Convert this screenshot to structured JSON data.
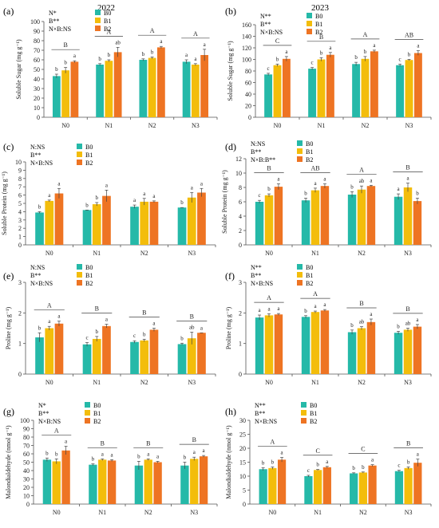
{
  "colors": {
    "B0": "#25b9a8",
    "B1": "#f3bd0b",
    "B2": "#ee7423",
    "axis": "#555555",
    "text": "#222222"
  },
  "chart_data": [
    {
      "panel": "(a)",
      "year": "2022",
      "type": "bar",
      "ylabel": "Soluble Sugar (mg g⁻¹)",
      "ylim": [
        0,
        100
      ],
      "yticks": [
        "0",
        "10",
        "20",
        "30",
        "40",
        "50",
        "60",
        "70",
        "80",
        "90",
        "100"
      ],
      "categories": [
        "N0",
        "N1",
        "N2",
        "N3"
      ],
      "effects": [
        "N*",
        "B**",
        "N×B:NS"
      ],
      "series": [
        {
          "name": "B0",
          "values": [
            43,
            55,
            60,
            58
          ],
          "err": [
            2,
            1,
            1,
            2
          ],
          "letters": [
            "b",
            "b",
            "b",
            "a"
          ]
        },
        {
          "name": "B1",
          "values": [
            49,
            59,
            62,
            55
          ],
          "err": [
            3,
            1,
            1,
            1
          ],
          "letters": [
            "b",
            "b",
            "b",
            "a"
          ]
        },
        {
          "name": "B2",
          "values": [
            58,
            68,
            73,
            65
          ],
          "err": [
            1,
            5,
            1,
            6
          ],
          "letters": [
            "a",
            "ab",
            "a",
            "a"
          ]
        }
      ],
      "group_letters": [
        "B",
        "A",
        "A",
        "A"
      ]
    },
    {
      "panel": "(b)",
      "year": "2023",
      "type": "bar",
      "ylabel": "Soluble Sugar (mg g⁻¹)",
      "ylim": [
        0,
        160
      ],
      "yticks": [
        "0",
        "20",
        "40",
        "60",
        "80",
        "100",
        "120",
        "140",
        "160"
      ],
      "categories": [
        "N0",
        "N1",
        "N2",
        "N3"
      ],
      "effects": [
        "N**",
        "B**",
        "N×B:NS"
      ],
      "series": [
        {
          "name": "B0",
          "values": [
            74,
            84,
            92,
            90
          ],
          "err": [
            2,
            2,
            3,
            2
          ],
          "letters": [
            "c",
            "c",
            "b",
            "c"
          ]
        },
        {
          "name": "B1",
          "values": [
            90,
            100,
            101,
            99
          ],
          "err": [
            2,
            3,
            4,
            1
          ],
          "letters": [
            "b",
            "b",
            "b",
            "b"
          ]
        },
        {
          "name": "B2",
          "values": [
            101,
            108,
            114,
            111
          ],
          "err": [
            4,
            4,
            2,
            4
          ],
          "letters": [
            "a",
            "a",
            "a",
            "a"
          ]
        }
      ],
      "group_letters": [
        "C",
        "B",
        "A",
        "AB"
      ]
    },
    {
      "panel": "(c)",
      "type": "bar",
      "ylabel": "Soluble Protein (mg g⁻¹)",
      "ylim": [
        0,
        10
      ],
      "yticks": [
        "0",
        "1",
        "2",
        "3",
        "4",
        "5",
        "6",
        "7",
        "8",
        "9",
        "10"
      ],
      "categories": [
        "N0",
        "N1",
        "N2",
        "N3"
      ],
      "effects": [
        "N:NS",
        "B**",
        "N×B:NS"
      ],
      "series": [
        {
          "name": "B0",
          "values": [
            3.9,
            4.2,
            4.6,
            4.5
          ],
          "err": [
            0.1,
            0.0,
            0.2,
            0.0
          ],
          "letters": [
            "b",
            "b",
            "a",
            "b"
          ]
        },
        {
          "name": "B1",
          "values": [
            5.3,
            4.9,
            5.2,
            5.7
          ],
          "err": [
            0.1,
            0.2,
            0.4,
            0.6
          ],
          "letters": [
            "a",
            "b",
            "a",
            "a"
          ]
        },
        {
          "name": "B2",
          "values": [
            6.2,
            5.9,
            5.2,
            6.3
          ],
          "err": [
            0.6,
            0.7,
            0.1,
            0.5
          ],
          "letters": [
            "a",
            "a",
            "a",
            "a"
          ]
        }
      ],
      "group_letters": [
        "",
        "",
        "",
        ""
      ]
    },
    {
      "panel": "(d)",
      "type": "bar",
      "ylabel": "Soluble Protein (mg g⁻¹)",
      "ylim": [
        0,
        12
      ],
      "yticks": [
        "0",
        "2",
        "4",
        "6",
        "8",
        "10",
        "12"
      ],
      "categories": [
        "N0",
        "N1",
        "N2",
        "N3"
      ],
      "effects": [
        "N:NS",
        "B**",
        "N×B:B**"
      ],
      "series": [
        {
          "name": "B0",
          "values": [
            6.0,
            6.2,
            7.0,
            6.7
          ],
          "err": [
            0.2,
            0.3,
            0.4,
            0.4
          ],
          "letters": [
            "c",
            "b",
            "b",
            "a"
          ]
        },
        {
          "name": "B1",
          "values": [
            6.9,
            7.6,
            7.7,
            8.0
          ],
          "err": [
            0.2,
            0.3,
            0.5,
            0.6
          ],
          "letters": [
            "b",
            "a",
            "ab",
            "a"
          ]
        },
        {
          "name": "B2",
          "values": [
            8.1,
            8.2,
            8.2,
            6.1
          ],
          "err": [
            0.4,
            0.3,
            0.1,
            0.4
          ],
          "letters": [
            "a",
            "a",
            "a",
            "b"
          ]
        }
      ],
      "group_letters": [
        "B",
        "AB",
        "A",
        "B"
      ]
    },
    {
      "panel": "(e)",
      "type": "bar",
      "ylabel": "Proline (mg g⁻¹)",
      "ylim": [
        0,
        3
      ],
      "yticks": [
        "0",
        "1",
        "2",
        "3"
      ],
      "categories": [
        "N0",
        "N1",
        "N2",
        "N3"
      ],
      "effects": [
        "N:NS",
        "B**",
        "N×B:NS"
      ],
      "series": [
        {
          "name": "B0",
          "values": [
            1.2,
            0.97,
            1.05,
            0.98
          ],
          "err": [
            0.15,
            0.06,
            0.04,
            0.03
          ],
          "letters": [
            "b",
            "c",
            "c",
            "b"
          ]
        },
        {
          "name": "B1",
          "values": [
            1.5,
            1.15,
            1.1,
            1.17
          ],
          "err": [
            0.06,
            0.08,
            0.04,
            0.2
          ],
          "letters": [
            "a",
            "b",
            "b",
            "ab"
          ]
        },
        {
          "name": "B2",
          "values": [
            1.65,
            1.57,
            1.45,
            1.35
          ],
          "err": [
            0.08,
            0.06,
            0.05,
            0.0
          ],
          "letters": [
            "a",
            "a",
            "a",
            "a"
          ]
        }
      ],
      "group_letters": [
        "A",
        "B",
        "B",
        "B"
      ]
    },
    {
      "panel": "(f)",
      "type": "bar",
      "ylabel": "Proline (mg g⁻¹)",
      "ylim": [
        0,
        3
      ],
      "yticks": [
        "0",
        "1",
        "2",
        "3"
      ],
      "categories": [
        "N0",
        "N1",
        "N2",
        "N3"
      ],
      "effects": [
        "N**",
        "B**",
        "N×B:NS"
      ],
      "series": [
        {
          "name": "B0",
          "values": [
            1.85,
            1.87,
            1.37,
            1.35
          ],
          "err": [
            0.08,
            0.04,
            0.07,
            0.05
          ],
          "letters": [
            "a",
            "b",
            "b",
            "b"
          ]
        },
        {
          "name": "B1",
          "values": [
            1.92,
            2.03,
            1.5,
            1.45
          ],
          "err": [
            0.05,
            0.03,
            0.05,
            0.05
          ],
          "letters": [
            "a",
            "a",
            "ab",
            "ab"
          ]
        },
        {
          "name": "B2",
          "values": [
            1.95,
            2.08,
            1.7,
            1.55
          ],
          "err": [
            0.03,
            0.03,
            0.1,
            0.07
          ],
          "letters": [
            "a",
            "a",
            "a",
            "a"
          ]
        }
      ],
      "group_letters": [
        "A",
        "A",
        "B",
        "B"
      ]
    },
    {
      "panel": "(g)",
      "type": "bar",
      "ylabel": "Malondialdehyde (nmol g⁻¹)",
      "ylim": [
        0,
        100
      ],
      "yticks": [
        "0",
        "10",
        "20",
        "30",
        "40",
        "50",
        "60",
        "70",
        "80",
        "90",
        "100"
      ],
      "categories": [
        "N0",
        "N1",
        "N2",
        "N3"
      ],
      "effects": [
        "N*",
        "B**",
        "N×B:NS"
      ],
      "series": [
        {
          "name": "B0",
          "values": [
            53,
            47,
            46,
            46
          ],
          "err": [
            2,
            1,
            5,
            4
          ],
          "letters": [
            "b",
            "b",
            "b",
            "b"
          ]
        },
        {
          "name": "B1",
          "values": [
            51,
            53,
            53,
            54
          ],
          "err": [
            3,
            1,
            1,
            2
          ],
          "letters": [
            "b",
            "a",
            "a",
            "a"
          ]
        },
        {
          "name": "B2",
          "values": [
            64,
            52,
            50,
            57
          ],
          "err": [
            5,
            1,
            1,
            1
          ],
          "letters": [
            "a",
            "a",
            "a",
            "a"
          ]
        }
      ],
      "group_letters": [
        "A",
        "B",
        "B",
        "B"
      ]
    },
    {
      "panel": "(h)",
      "type": "bar",
      "ylabel": "Malondialdehyde (nmol g⁻¹)",
      "ylim": [
        0,
        30
      ],
      "yticks": [
        "0",
        "5",
        "10",
        "15",
        "20",
        "25",
        "30"
      ],
      "categories": [
        "N0",
        "N1",
        "N2",
        "N3"
      ],
      "effects": [
        "N**",
        "B**",
        "N×B:NS"
      ],
      "series": [
        {
          "name": "B0",
          "values": [
            12.5,
            10.0,
            11.0,
            11.8
          ],
          "err": [
            0.5,
            0.3,
            0.2,
            0.3
          ],
          "letters": [
            "b",
            "c",
            "b",
            "c"
          ]
        },
        {
          "name": "B1",
          "values": [
            12.9,
            12.2,
            11.3,
            12.9
          ],
          "err": [
            0.4,
            0.2,
            0.2,
            0.4
          ],
          "letters": [
            "b",
            "b",
            "b",
            "b"
          ]
        },
        {
          "name": "B2",
          "values": [
            15.9,
            13.2,
            13.8,
            14.8
          ],
          "err": [
            0.8,
            0.3,
            0.3,
            1.3
          ],
          "letters": [
            "a",
            "a",
            "a",
            "a"
          ]
        }
      ],
      "group_letters": [
        "A",
        "C",
        "C",
        "B"
      ]
    }
  ]
}
